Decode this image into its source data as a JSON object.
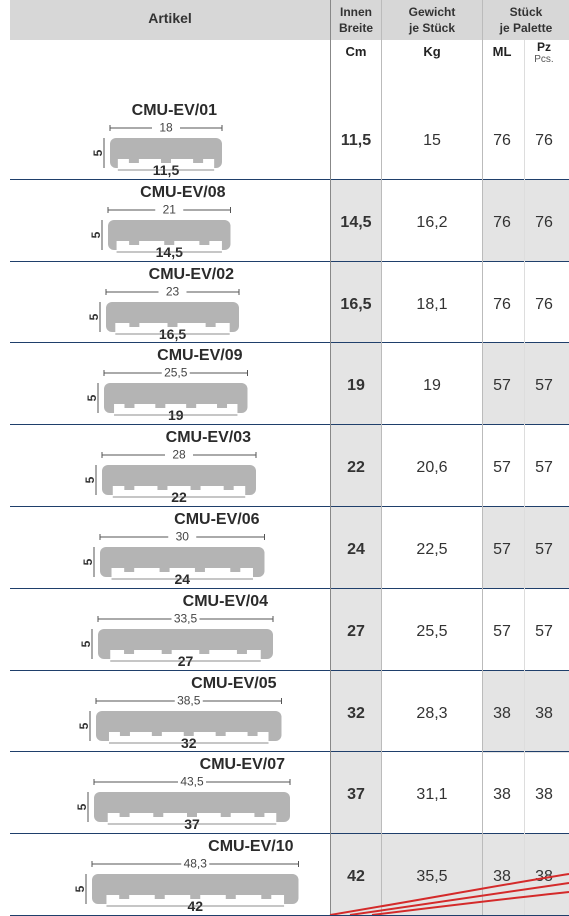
{
  "header": {
    "artikel": "Artikel",
    "innen_line1": "Innen",
    "innen_line2": "Breite",
    "gewicht_line1": "Gewicht",
    "gewicht_line2": "je Stück",
    "stueck_line1": "Stück",
    "stueck_line2": "je Palette",
    "unit_cm": "Cm",
    "unit_kg": "Kg",
    "unit_ml": "ML",
    "unit_pz": "Pz",
    "unit_pcs": "Pcs."
  },
  "rows": [
    {
      "code": "CMU-EV/01",
      "outer": "18",
      "inner": "11,5",
      "height": "5",
      "breite": "11,5",
      "gewicht": "15",
      "ml": "76",
      "pz": "76"
    },
    {
      "code": "CMU-EV/08",
      "outer": "21",
      "inner": "14,5",
      "height": "5",
      "breite": "14,5",
      "gewicht": "16,2",
      "ml": "76",
      "pz": "76"
    },
    {
      "code": "CMU-EV/02",
      "outer": "23",
      "inner": "16,5",
      "height": "5",
      "breite": "16,5",
      "gewicht": "18,1",
      "ml": "76",
      "pz": "76"
    },
    {
      "code": "CMU-EV/09",
      "outer": "25,5",
      "inner": "19",
      "height": "5",
      "breite": "19",
      "gewicht": "19",
      "ml": "57",
      "pz": "57"
    },
    {
      "code": "CMU-EV/03",
      "outer": "28",
      "inner": "22",
      "height": "5",
      "breite": "22",
      "gewicht": "20,6",
      "ml": "57",
      "pz": "57"
    },
    {
      "code": "CMU-EV/06",
      "outer": "30",
      "inner": "24",
      "height": "5",
      "breite": "24",
      "gewicht": "22,5",
      "ml": "57",
      "pz": "57"
    },
    {
      "code": "CMU-EV/04",
      "outer": "33,5",
      "inner": "27",
      "height": "5",
      "breite": "27",
      "gewicht": "25,5",
      "ml": "57",
      "pz": "57"
    },
    {
      "code": "CMU-EV/05",
      "outer": "38,5",
      "inner": "32",
      "height": "5",
      "breite": "32",
      "gewicht": "28,3",
      "ml": "38",
      "pz": "38"
    },
    {
      "code": "CMU-EV/07",
      "outer": "43,5",
      "inner": "37",
      "height": "5",
      "breite": "37",
      "gewicht": "31,1",
      "ml": "38",
      "pz": "38"
    },
    {
      "code": "CMU-EV/10",
      "outer": "48,3",
      "inner": "42",
      "height": "5",
      "breite": "42",
      "gewicht": "35,5",
      "ml": "38",
      "pz": "38"
    }
  ],
  "colors": {
    "header_bg": "#d7d7d7",
    "gray_cell": "#e4e4e4",
    "row_border": "#1f3f6b",
    "profile_fill": "#b4b4b4",
    "swoosh": "#d42a2a"
  }
}
